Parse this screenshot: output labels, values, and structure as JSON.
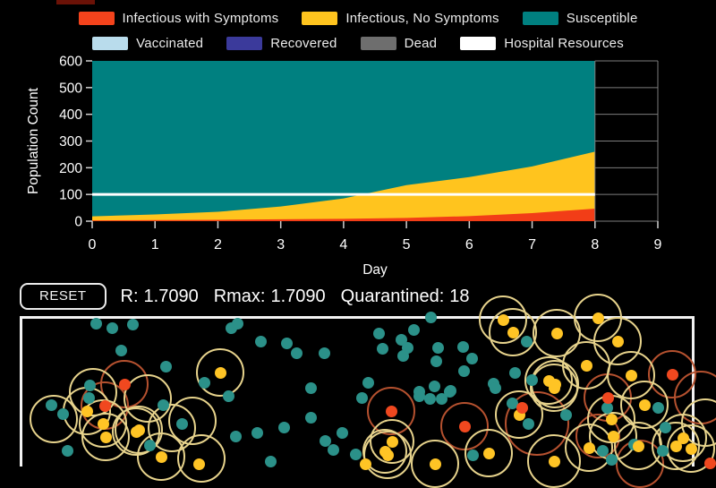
{
  "app": {
    "background": "#000000"
  },
  "legend": {
    "partial_swatch_color": "#6b1207",
    "rows": [
      [
        {
          "name": "infectious-with-symptoms",
          "label": "Infectious with Symptoms",
          "color": "#f4431c"
        },
        {
          "name": "infectious-no-symptoms",
          "label": "Infectious, No Symptoms",
          "color": "#ffc41e"
        },
        {
          "name": "susceptible",
          "label": "Susceptible",
          "color": "#008080"
        }
      ],
      [
        {
          "name": "vaccinated",
          "label": "Vaccinated",
          "color": "#b9dcec"
        },
        {
          "name": "recovered",
          "label": "Recovered",
          "color": "#3b3a9b"
        },
        {
          "name": "dead",
          "label": "Dead",
          "color": "#6e6e6e"
        },
        {
          "name": "hospital-resources",
          "label": "Hospital Resources",
          "color": "#ffffff"
        }
      ]
    ]
  },
  "chart_data": {
    "type": "area",
    "stacked": true,
    "title": "",
    "xlabel": "Day",
    "ylabel": "Population Count",
    "xlim": [
      0,
      9
    ],
    "ylim": [
      0,
      600
    ],
    "xticks": [
      0,
      1,
      2,
      3,
      4,
      5,
      6,
      7,
      8,
      9
    ],
    "yticks": [
      0,
      100,
      200,
      300,
      400,
      500,
      600
    ],
    "x": [
      0,
      1,
      2,
      3,
      4,
      5,
      6,
      7,
      8
    ],
    "series": [
      {
        "name": "Susceptible",
        "color": "#008080",
        "cumulative_top": [
          600,
          600,
          600,
          600,
          600,
          600,
          600,
          600,
          600
        ]
      },
      {
        "name": "Infectious, No Symptoms",
        "color": "#ffc41e",
        "cumulative_top": [
          18,
          25,
          35,
          55,
          85,
          135,
          165,
          205,
          260
        ]
      },
      {
        "name": "Infectious with Symptoms",
        "color": "#f23d17",
        "cumulative_top": [
          3,
          4,
          5,
          7,
          9,
          12,
          19,
          30,
          47
        ]
      }
    ],
    "hospital_line_y": 100,
    "grid": true,
    "grid_color": "#7d7d7d",
    "axis_text_color": "#ffffff",
    "legend_position": "top"
  },
  "controls": {
    "reset_label": "RESET",
    "stats": [
      {
        "label": "R:",
        "value": "1.7090"
      },
      {
        "label": "Rmax:",
        "value": "1.7090"
      },
      {
        "label": "Quarantined:",
        "value": "18"
      }
    ]
  },
  "sim": {
    "border_color": "#f2f2f2",
    "dot_colors": {
      "susceptible": "#2b9189",
      "asymptomatic": "#ffc425",
      "symptomatic": "#f0481f"
    },
    "ring_colors": {
      "asymptomatic": "#e7d38c",
      "symptomatic": "#b5512f"
    },
    "dots": {
      "susceptible": [
        [
          107,
          361
        ],
        [
          125,
          366
        ],
        [
          148,
          362
        ],
        [
          258,
          366
        ],
        [
          265,
          361
        ],
        [
          291,
          381
        ],
        [
          320,
          383
        ],
        [
          331,
          394
        ],
        [
          362,
          394
        ],
        [
          135,
          391
        ],
        [
          185,
          409
        ],
        [
          228,
          427
        ],
        [
          100,
          430
        ],
        [
          99,
          444
        ],
        [
          57,
          452
        ],
        [
          70,
          462
        ],
        [
          75,
          503
        ],
        [
          167,
          497
        ],
        [
          182,
          452
        ],
        [
          203,
          473
        ],
        [
          255,
          442
        ],
        [
          263,
          487
        ],
        [
          287,
          483
        ],
        [
          317,
          477
        ],
        [
          347,
          433
        ],
        [
          347,
          466
        ],
        [
          363,
          492
        ],
        [
          372,
          502
        ],
        [
          382,
          483
        ],
        [
          397,
          507
        ],
        [
          302,
          515
        ],
        [
          423,
          372
        ],
        [
          427,
          389
        ],
        [
          448,
          379
        ],
        [
          455,
          388
        ],
        [
          450,
          397
        ],
        [
          462,
          368
        ],
        [
          481,
          354
        ],
        [
          487,
          403
        ],
        [
          489,
          388
        ],
        [
          517,
          387
        ],
        [
          527,
          400
        ],
        [
          518,
          414
        ],
        [
          468,
          437
        ],
        [
          485,
          431
        ],
        [
          503,
          436
        ],
        [
          551,
          428
        ],
        [
          588,
          381
        ],
        [
          575,
          416
        ],
        [
          594,
          424
        ],
        [
          404,
          444
        ],
        [
          468,
          442
        ],
        [
          480,
          445
        ],
        [
          493,
          445
        ],
        [
          502,
          437
        ],
        [
          553,
          433
        ],
        [
          572,
          450
        ],
        [
          590,
          473
        ],
        [
          632,
          463
        ],
        [
          678,
          455
        ],
        [
          735,
          455
        ],
        [
          673,
          503
        ],
        [
          708,
          496
        ],
        [
          740,
          503
        ],
        [
          743,
          477
        ],
        [
          528,
          508
        ],
        [
          411,
          427
        ],
        [
          683,
          513
        ]
      ],
      "asymptomatic": [
        [
          246,
          416
        ],
        [
          562,
          357
        ],
        [
          573,
          371
        ],
        [
          622,
          372
        ],
        [
          668,
          355
        ],
        [
          690,
          381
        ],
        [
          655,
          408
        ],
        [
          705,
          419
        ],
        [
          613,
          425
        ],
        [
          620,
          429
        ],
        [
          683,
          468
        ],
        [
          720,
          452
        ],
        [
          685,
          487
        ],
        [
          713,
          498
        ],
        [
          755,
          498
        ],
        [
          772,
          501
        ],
        [
          580,
          463
        ],
        [
          619,
          433
        ],
        [
          546,
          506
        ],
        [
          486,
          518
        ],
        [
          97,
          459
        ],
        [
          115,
          473
        ],
        [
          118,
          488
        ],
        [
          152,
          482
        ],
        [
          180,
          510
        ],
        [
          155,
          480
        ],
        [
          433,
          508
        ],
        [
          222,
          518
        ],
        [
          619,
          515
        ],
        [
          438,
          493
        ],
        [
          430,
          504
        ],
        [
          408,
          518
        ],
        [
          658,
          500
        ],
        [
          763,
          489
        ]
      ],
      "symptomatic": [
        [
          139,
          429
        ],
        [
          117,
          453
        ],
        [
          751,
          418
        ],
        [
          437,
          459
        ],
        [
          519,
          476
        ],
        [
          583,
          455
        ],
        [
          679,
          444
        ],
        [
          793,
          517
        ]
      ]
    },
    "rings": {
      "symptomatic": [
        [
          139,
          429,
          27
        ],
        [
          117,
          453,
          27
        ],
        [
          751,
          418,
          27
        ],
        [
          437,
          459,
          27
        ],
        [
          519,
          476,
          27
        ],
        [
          600,
          473,
          36
        ],
        [
          679,
          444,
          27
        ],
        [
          783,
          444,
          30
        ],
        [
          715,
          518,
          27
        ],
        [
          668,
          487,
          25
        ]
      ],
      "asymptomatic": [
        [
          246,
          416,
          27
        ],
        [
          562,
          357,
          27
        ],
        [
          573,
          371,
          27
        ],
        [
          622,
          372,
          27
        ],
        [
          668,
          355,
          27
        ],
        [
          690,
          381,
          27
        ],
        [
          655,
          408,
          27
        ],
        [
          705,
          419,
          27
        ],
        [
          613,
          425,
          27
        ],
        [
          620,
          429,
          27
        ],
        [
          683,
          468,
          27
        ],
        [
          720,
          452,
          27
        ],
        [
          685,
          487,
          27
        ],
        [
          713,
          498,
          27
        ],
        [
          755,
          498,
          27
        ],
        [
          772,
          501,
          27
        ],
        [
          580,
          463,
          27
        ],
        [
          619,
          433,
          27
        ],
        [
          546,
          506,
          27
        ],
        [
          486,
          518,
          27
        ],
        [
          97,
          459,
          27
        ],
        [
          115,
          473,
          27
        ],
        [
          118,
          488,
          27
        ],
        [
          152,
          482,
          27
        ],
        [
          180,
          510,
          27
        ],
        [
          155,
          480,
          27
        ],
        [
          433,
          508,
          27
        ],
        [
          225,
          512,
          27
        ],
        [
          619,
          515,
          30
        ],
        [
          60,
          468,
          27
        ],
        [
          165,
          445,
          27
        ],
        [
          215,
          470,
          27
        ],
        [
          104,
          438,
          27
        ],
        [
          192,
          478,
          27
        ],
        [
          788,
          472,
          27
        ],
        [
          438,
          493,
          25
        ],
        [
          430,
          504,
          25
        ],
        [
          658,
          500,
          27
        ],
        [
          763,
          489,
          27
        ]
      ]
    }
  }
}
